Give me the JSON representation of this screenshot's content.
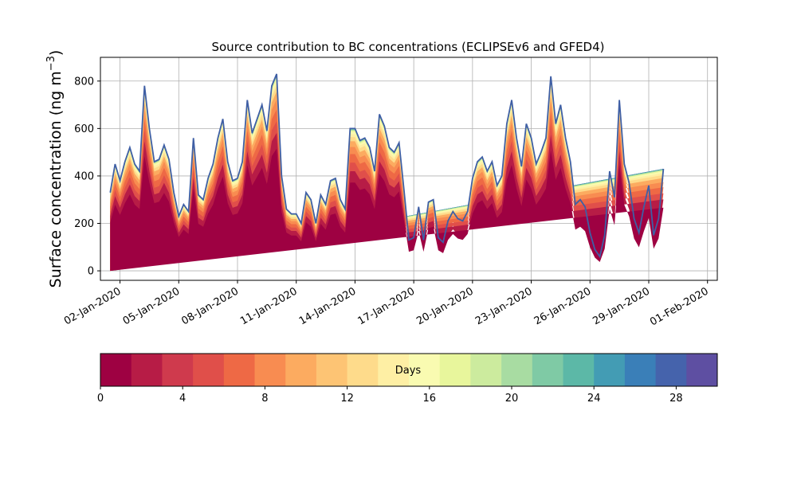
{
  "chart_data": [
    {
      "type": "area",
      "title": "Source contribution to BC concentrations (ECLIPSEv6 and GFED4)",
      "xlabel": "",
      "ylabel": "Surface concentration (ng m",
      "ylabel_sup": "−3",
      "ylabel_close": ")",
      "xlim": [
        "2020-01-01T00:00",
        "2020-02-01T12:00"
      ],
      "ylim": [
        -40,
        900
      ],
      "grid": true,
      "x_ticks": [
        "02-Jan-2020",
        "05-Jan-2020",
        "08-Jan-2020",
        "11-Jan-2020",
        "14-Jan-2020",
        "17-Jan-2020",
        "20-Jan-2020",
        "23-Jan-2020",
        "26-Jan-2020",
        "29-Jan-2020",
        "01-Feb-2020"
      ],
      "x_tick_dates": [
        "2020-01-02",
        "2020-01-05",
        "2020-01-08",
        "2020-01-11",
        "2020-01-14",
        "2020-01-17",
        "2020-01-20",
        "2020-01-23",
        "2020-01-26",
        "2020-01-29",
        "2020-02-01"
      ],
      "y_ticks": [
        0,
        200,
        400,
        600,
        800
      ],
      "x_dates": [
        "2020-01-01T12:00",
        "2020-01-01T18:00",
        "2020-01-02T00:00",
        "2020-01-02T06:00",
        "2020-01-02T12:00",
        "2020-01-02T18:00",
        "2020-01-03T00:00",
        "2020-01-03T06:00",
        "2020-01-03T12:00",
        "2020-01-03T18:00",
        "2020-01-04T00:00",
        "2020-01-04T06:00",
        "2020-01-04T12:00",
        "2020-01-04T18:00",
        "2020-01-05T00:00",
        "2020-01-05T06:00",
        "2020-01-05T12:00",
        "2020-01-05T18:00",
        "2020-01-06T00:00",
        "2020-01-06T06:00",
        "2020-01-06T12:00",
        "2020-01-06T18:00",
        "2020-01-07T00:00",
        "2020-01-07T06:00",
        "2020-01-07T12:00",
        "2020-01-07T18:00",
        "2020-01-08T00:00",
        "2020-01-08T06:00",
        "2020-01-08T12:00",
        "2020-01-08T18:00",
        "2020-01-09T00:00",
        "2020-01-09T06:00",
        "2020-01-09T12:00",
        "2020-01-09T18:00",
        "2020-01-10T00:00",
        "2020-01-10T06:00",
        "2020-01-10T12:00",
        "2020-01-10T18:00",
        "2020-01-11T00:00",
        "2020-01-11T06:00",
        "2020-01-11T12:00",
        "2020-01-11T18:00",
        "2020-01-12T00:00",
        "2020-01-12T06:00",
        "2020-01-12T12:00",
        "2020-01-12T18:00",
        "2020-01-13T00:00",
        "2020-01-13T06:00",
        "2020-01-13T12:00",
        "2020-01-13T18:00",
        "2020-01-14T00:00",
        "2020-01-14T06:00",
        "2020-01-14T12:00",
        "2020-01-14T18:00",
        "2020-01-15T00:00",
        "2020-01-15T06:00",
        "2020-01-15T12:00",
        "2020-01-15T18:00",
        "2020-01-16T00:00",
        "2020-01-16T06:00",
        "2020-01-16T12:00",
        "2020-01-16T18:00",
        "2020-01-17T00:00",
        "2020-01-17T06:00",
        "2020-01-17T12:00",
        "2020-01-17T18:00",
        "2020-01-18T00:00",
        "2020-01-18T06:00",
        "2020-01-18T12:00",
        "2020-01-18T18:00",
        "2020-01-19T00:00",
        "2020-01-19T06:00",
        "2020-01-19T12:00",
        "2020-01-19T18:00",
        "2020-01-20T00:00",
        "2020-01-20T06:00",
        "2020-01-20T12:00",
        "2020-01-20T18:00",
        "2020-01-21T00:00",
        "2020-01-21T06:00",
        "2020-01-21T12:00",
        "2020-01-21T18:00",
        "2020-01-22T00:00",
        "2020-01-22T06:00",
        "2020-01-22T12:00",
        "2020-01-22T18:00",
        "2020-01-23T00:00",
        "2020-01-23T06:00",
        "2020-01-23T12:00",
        "2020-01-23T18:00",
        "2020-01-24T00:00",
        "2020-01-24T06:00",
        "2020-01-24T12:00",
        "2020-01-24T18:00",
        "2020-01-25T00:00",
        "2020-01-25T06:00",
        "2020-01-25T12:00",
        "2020-01-25T18:00",
        "2020-01-26T00:00",
        "2020-01-26T06:00",
        "2020-01-26T12:00",
        "2020-01-26T18:00",
        "2020-01-27T00:00",
        "2020-01-27T06:00",
        "2020-01-27T12:00",
        "2020-01-27T18:00",
        "2020-01-28T00:00",
        "2020-01-28T06:00",
        "2020-01-28T12:00",
        "2020-01-28T18:00",
        "2020-01-29T00:00",
        "2020-01-29T06:00",
        "2020-01-29T12:00",
        "2020-01-29T18:00",
        "2020-01-30T00:00",
        "2020-01-30T06:00",
        "2020-01-30T12:00",
        "2020-01-30T18:00",
        "2020-01-31T00:00",
        "2020-01-31T06:00",
        "2020-01-31T12:00",
        "2020-01-31T18:00",
        "2020-02-01T00:00"
      ],
      "total": [
        330,
        450,
        380,
        460,
        520,
        450,
        420,
        780,
        600,
        460,
        470,
        530,
        470,
        330,
        230,
        280,
        250,
        560,
        320,
        300,
        390,
        450,
        560,
        640,
        460,
        380,
        390,
        460,
        720,
        580,
        640,
        700,
        590,
        780,
        830,
        400,
        260,
        240,
        240,
        200,
        330,
        300,
        200,
        320,
        280,
        380,
        390,
        300,
        260,
        600,
        600,
        550,
        560,
        520,
        420,
        660,
        610,
        520,
        500,
        540,
        340,
        130,
        140,
        270,
        130,
        290,
        300,
        140,
        120,
        210,
        250,
        220,
        210,
        250,
        390,
        460,
        480,
        420,
        460,
        360,
        400,
        620,
        720,
        560,
        440,
        620,
        560,
        450,
        500,
        560,
        820,
        620,
        700,
        560,
        460,
        280,
        300,
        270,
        160,
        90,
        60,
        150,
        420,
        310,
        720,
        450,
        370,
        220,
        160,
        270,
        360,
        150,
        220,
        430
      ],
      "series_layers": {
        "days": [
          0,
          2,
          4,
          6,
          8,
          10,
          12,
          14,
          16,
          18,
          20,
          22,
          24,
          26,
          28,
          30
        ],
        "fractions": [
          0.62,
          0.7,
          0.76,
          0.82,
          0.87,
          0.91,
          0.94,
          0.96,
          0.975,
          0.985,
          0.99,
          0.994,
          0.997,
          0.999,
          1.0,
          1.0
        ]
      }
    },
    {
      "type": "heatmap",
      "name": "colorbar",
      "label": "Days",
      "range": [
        0,
        30
      ],
      "ticks": [
        0,
        4,
        8,
        12,
        16,
        20,
        24,
        28
      ],
      "colors": [
        "#9e0142",
        "#b71c46",
        "#cf3a4d",
        "#e04f4a",
        "#ee6945",
        "#f88c51",
        "#fcab60",
        "#fdc474",
        "#fedb8b",
        "#feefa4",
        "#f9fbb1",
        "#e8f69c",
        "#cceb9e",
        "#a8dca2",
        "#7fcaa5",
        "#5cb8a7",
        "#439cb4",
        "#3a7fb8",
        "#4563ac",
        "#5e4fa2"
      ]
    }
  ]
}
